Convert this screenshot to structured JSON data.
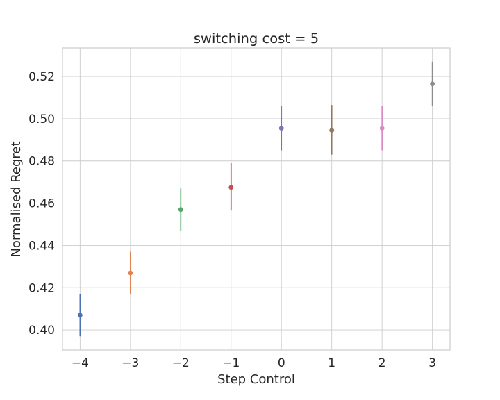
{
  "chart_data": {
    "type": "scatter",
    "title": "switching cost = 5",
    "xlabel": "Step Control",
    "ylabel": "Normalised Regret",
    "xlim": [
      -4.35,
      3.35
    ],
    "ylim": [
      0.3905,
      0.5335
    ],
    "xticks": [
      -4,
      -3,
      -2,
      -1,
      0,
      1,
      2,
      3
    ],
    "xtick_labels": [
      "−4",
      "−3",
      "−2",
      "−1",
      "0",
      "1",
      "2",
      "3"
    ],
    "yticks": [
      0.4,
      0.42,
      0.44,
      0.46,
      0.48,
      0.5,
      0.52
    ],
    "ytick_labels": [
      "0.40",
      "0.42",
      "0.44",
      "0.46",
      "0.48",
      "0.50",
      "0.52"
    ],
    "grid": true,
    "points": [
      {
        "x": -4,
        "y": 0.407,
        "err_low": 0.397,
        "err_high": 0.417,
        "color": "#4c72b0"
      },
      {
        "x": -3,
        "y": 0.427,
        "err_low": 0.417,
        "err_high": 0.437,
        "color": "#dd8452"
      },
      {
        "x": -2,
        "y": 0.457,
        "err_low": 0.447,
        "err_high": 0.467,
        "color": "#55a868"
      },
      {
        "x": -1,
        "y": 0.4675,
        "err_low": 0.4565,
        "err_high": 0.479,
        "color": "#c44e52"
      },
      {
        "x": 0,
        "y": 0.4955,
        "err_low": 0.485,
        "err_high": 0.506,
        "color": "#8172b3"
      },
      {
        "x": 1,
        "y": 0.4945,
        "err_low": 0.483,
        "err_high": 0.5065,
        "color": "#937860"
      },
      {
        "x": 2,
        "y": 0.4955,
        "err_low": 0.485,
        "err_high": 0.506,
        "color": "#da8bc3"
      },
      {
        "x": 3,
        "y": 0.5165,
        "err_low": 0.506,
        "err_high": 0.527,
        "color": "#8c8c8c"
      }
    ]
  }
}
